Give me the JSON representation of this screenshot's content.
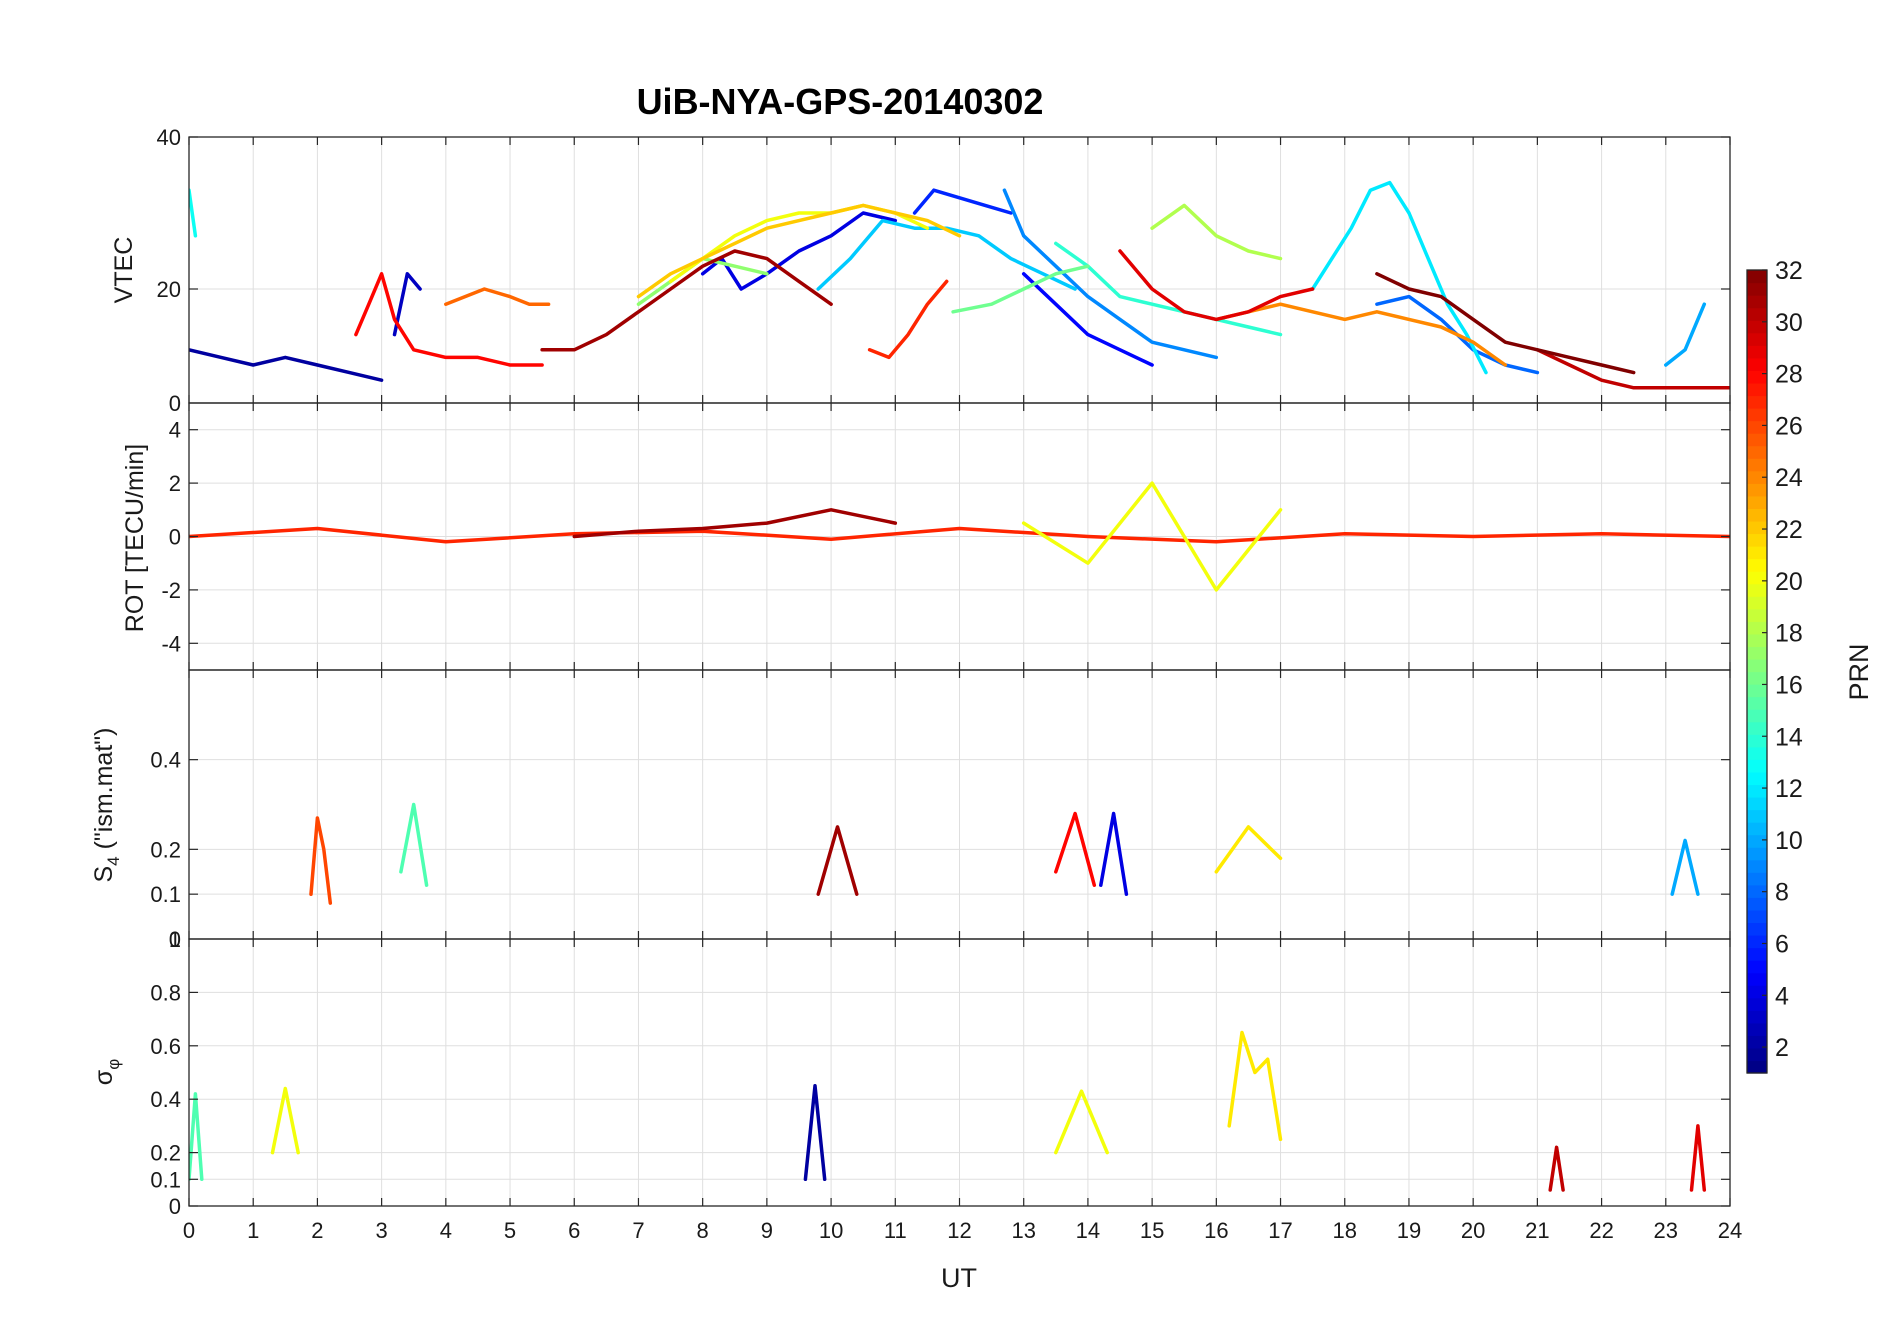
{
  "chart_data": {
    "type": "line",
    "title": "UiB-NYA-GPS-20140302",
    "xlabel": "UT",
    "xlim": [
      0,
      24
    ],
    "xticks": [
      "0",
      "1",
      "2",
      "3",
      "4",
      "5",
      "6",
      "7",
      "8",
      "9",
      "10",
      "11",
      "12",
      "13",
      "14",
      "15",
      "16",
      "17",
      "18",
      "19",
      "20",
      "21",
      "22",
      "23",
      "24"
    ],
    "grid": true,
    "panels": [
      {
        "id": "vtec",
        "ylabel": "VTEC",
        "ylim": [
          5,
          40
        ],
        "yticks": [
          {
            "v": 20,
            "label": "20"
          },
          {
            "v": 40,
            "label": "40"
          }
        ],
        "series": [
          {
            "prn": 2,
            "x": [
              0.0,
              0.5,
              1.0,
              1.5,
              2.0,
              2.5,
              3.0
            ],
            "y": [
              12,
              11,
              10,
              11,
              10,
              9,
              8
            ]
          },
          {
            "prn": 3,
            "x": [
              3.2,
              3.3,
              3.4,
              3.5,
              3.6
            ],
            "y": [
              14,
              18,
              22,
              21,
              20
            ]
          },
          {
            "prn": 4,
            "x": [
              8.0,
              8.3,
              8.6,
              9.0,
              9.5,
              10.0,
              10.5,
              11.0
            ],
            "y": [
              22,
              24,
              20,
              22,
              25,
              27,
              30,
              29
            ]
          },
          {
            "prn": 5,
            "x": [
              13.0,
              13.5,
              14.0,
              14.5,
              15.0
            ],
            "y": [
              22,
              18,
              14,
              12,
              10
            ]
          },
          {
            "prn": 6,
            "x": [
              11.3,
              11.6,
              12.0,
              12.4,
              12.8
            ],
            "y": [
              30,
              33,
              32,
              31,
              30
            ]
          },
          {
            "prn": 8,
            "x": [
              18.5,
              19.0,
              19.5,
              20.0,
              20.5,
              21.0
            ],
            "y": [
              18,
              19,
              16,
              12,
              10,
              9
            ]
          },
          {
            "prn": 9,
            "x": [
              12.7,
              13.0,
              13.5,
              14.0,
              14.5,
              15.0,
              15.5,
              16.0
            ],
            "y": [
              33,
              27,
              23,
              19,
              16,
              13,
              12,
              11
            ]
          },
          {
            "prn": 10,
            "x": [
              23.0,
              23.3,
              23.6
            ],
            "y": [
              10,
              12,
              18
            ]
          },
          {
            "prn": 11,
            "x": [
              9.8,
              10.3,
              10.8,
              11.3,
              11.8,
              12.3,
              12.8,
              13.3,
              13.8
            ],
            "y": [
              20,
              24,
              29,
              28,
              28,
              27,
              24,
              22,
              20
            ]
          },
          {
            "prn": 12,
            "x": [
              17.5,
              17.8,
              18.1,
              18.4,
              18.7,
              19.0,
              19.3,
              19.6,
              19.9,
              20.2
            ],
            "y": [
              20,
              24,
              28,
              33,
              34,
              30,
              24,
              18,
              14,
              9
            ]
          },
          {
            "prn": 13,
            "x": [
              0.0,
              0.05,
              0.1
            ],
            "y": [
              33,
              30,
              27
            ]
          },
          {
            "prn": 14,
            "x": [
              13.5,
              14.0,
              14.5,
              15.0,
              15.5,
              16.0,
              16.5,
              17.0
            ],
            "y": [
              26,
              23,
              19,
              18,
              17,
              16,
              15,
              14
            ]
          },
          {
            "prn": 16,
            "x": [
              11.9,
              12.5,
              13.0,
              13.5,
              14.0
            ],
            "y": [
              17,
              18,
              20,
              22,
              23
            ]
          },
          {
            "prn": 17,
            "x": [
              7.0,
              7.5,
              8.0,
              8.5,
              9.0
            ],
            "y": [
              18,
              21,
              24,
              23,
              22
            ]
          },
          {
            "prn": 18,
            "x": [
              15.0,
              15.5,
              16.0,
              16.5,
              17.0
            ],
            "y": [
              28,
              31,
              27,
              25,
              24
            ]
          },
          {
            "prn": 20,
            "x": [
              7.5,
              8.0,
              8.5,
              9.0,
              9.5,
              10.0,
              10.5,
              11.0,
              11.5
            ],
            "y": [
              21,
              24,
              27,
              29,
              30,
              30,
              31,
              30,
              28
            ]
          },
          {
            "prn": 22,
            "x": [
              7.0,
              7.5,
              8.0,
              8.5,
              9.0,
              9.5,
              10.0,
              10.5,
              11.0,
              11.5,
              12.0
            ],
            "y": [
              19,
              22,
              24,
              26,
              28,
              29,
              30,
              31,
              30,
              29,
              27
            ]
          },
          {
            "prn": 24,
            "x": [
              16.0,
              16.5,
              17.0,
              17.5,
              18.0,
              18.5,
              19.0,
              19.5,
              20.0,
              20.5
            ],
            "y": [
              16,
              17,
              18,
              17,
              16,
              17,
              16,
              15,
              13,
              10
            ]
          },
          {
            "prn": 25,
            "x": [
              4.0,
              4.3,
              4.6,
              5.0,
              5.3,
              5.6
            ],
            "y": [
              18,
              19,
              20,
              19,
              18,
              18
            ]
          },
          {
            "prn": 27,
            "x": [
              10.6,
              10.9,
              11.2,
              11.5,
              11.8
            ],
            "y": [
              12,
              11,
              14,
              18,
              21
            ]
          },
          {
            "prn": 28,
            "x": [
              2.6,
              2.8,
              3.0,
              3.2,
              3.5,
              4.0,
              4.5,
              5.0,
              5.5
            ],
            "y": [
              14,
              18,
              22,
              16,
              12,
              11,
              11,
              10,
              10
            ]
          },
          {
            "prn": 29,
            "x": [
              14.5,
              15.0,
              15.5,
              16.0,
              16.5,
              17.0,
              17.5
            ],
            "y": [
              25,
              20,
              17,
              16,
              17,
              19,
              20
            ]
          },
          {
            "prn": 30,
            "x": [
              21.0,
              21.5,
              22.0,
              22.5,
              23.0,
              23.5,
              24.0
            ],
            "y": [
              12,
              10,
              8,
              7,
              7,
              7,
              7
            ]
          },
          {
            "prn": 31,
            "x": [
              5.5,
              6.0,
              6.5,
              7.0,
              7.5,
              8.0,
              8.5,
              9.0,
              9.5,
              10.0
            ],
            "y": [
              12,
              12,
              14,
              17,
              20,
              23,
              25,
              24,
              21,
              18
            ]
          },
          {
            "prn": 32,
            "x": [
              18.5,
              19.0,
              19.5,
              20.0,
              20.5,
              21.0,
              21.5,
              22.0,
              22.5
            ],
            "y": [
              22,
              20,
              19,
              16,
              13,
              12,
              11,
              10,
              9
            ]
          }
        ]
      },
      {
        "id": "rot",
        "ylabel": "ROT [TECU/min]",
        "ylim": [
          -5,
          5
        ],
        "yticks": [
          {
            "v": -4,
            "label": "-4"
          },
          {
            "v": -2,
            "label": "-2"
          },
          {
            "v": 0,
            "label": "0"
          },
          {
            "v": 2,
            "label": "2"
          },
          {
            "v": 4,
            "label": "4"
          }
        ],
        "top_tick_label": "0",
        "series": [
          {
            "prn": 27,
            "x": [
              0.0,
              2.0,
              4.0,
              6.0,
              8.0,
              10.0,
              12.0,
              14.0,
              16.0,
              18.0,
              20.0,
              22.0,
              24.0
            ],
            "y": [
              0,
              0.3,
              -0.2,
              0.1,
              0.2,
              -0.1,
              0.3,
              0.0,
              -0.2,
              0.1,
              0.0,
              0.1,
              0.0
            ]
          },
          {
            "prn": 31,
            "x": [
              6.0,
              7.0,
              8.0,
              9.0,
              10.0,
              11.0
            ],
            "y": [
              0,
              0.2,
              0.3,
              0.5,
              1.0,
              0.5
            ]
          },
          {
            "prn": 20,
            "x": [
              13.0,
              14.0,
              15.0,
              16.0,
              17.0
            ],
            "y": [
              0.5,
              -1,
              2,
              -2,
              1
            ]
          }
        ]
      },
      {
        "id": "s4",
        "ylabel": "S4 (\"ism.mat\")",
        "ylim": [
          0,
          0.6
        ],
        "yticks": [
          {
            "v": 0.1,
            "label": "0.1"
          },
          {
            "v": 0.2,
            "label": "0.2"
          },
          {
            "v": 0.4,
            "label": "0.4"
          }
        ],
        "bottom_tick_label": "0",
        "series": [
          {
            "prn": 26,
            "x": [
              1.9,
              2.0,
              2.1,
              2.2
            ],
            "y": [
              0.1,
              0.27,
              0.2,
              0.08
            ]
          },
          {
            "prn": 15,
            "x": [
              3.3,
              3.5,
              3.7
            ],
            "y": [
              0.15,
              0.3,
              0.12
            ]
          },
          {
            "prn": 28,
            "x": [
              13.5,
              13.8,
              14.1
            ],
            "y": [
              0.15,
              0.28,
              0.12
            ]
          },
          {
            "prn": 4,
            "x": [
              14.2,
              14.4,
              14.6
            ],
            "y": [
              0.12,
              0.28,
              0.1
            ]
          },
          {
            "prn": 31,
            "x": [
              9.8,
              10.1,
              10.4
            ],
            "y": [
              0.1,
              0.25,
              0.1
            ]
          },
          {
            "prn": 21,
            "x": [
              16.0,
              16.5,
              17.0
            ],
            "y": [
              0.15,
              0.25,
              0.18
            ]
          },
          {
            "prn": 10,
            "x": [
              23.1,
              23.3,
              23.5
            ],
            "y": [
              0.1,
              0.22,
              0.1
            ]
          }
        ]
      },
      {
        "id": "sigma",
        "ylabel": "σφ",
        "ylim": [
          0,
          1
        ],
        "yticks": [
          {
            "v": 0,
            "label": "0"
          },
          {
            "v": 0.1,
            "label": "0.1"
          },
          {
            "v": 0.2,
            "label": "0.2"
          },
          {
            "v": 0.4,
            "label": "0.4"
          },
          {
            "v": 0.6,
            "label": "0.6"
          },
          {
            "v": 0.8,
            "label": "0.8"
          }
        ],
        "top_tick_label": "1",
        "series": [
          {
            "prn": 21,
            "x": [
              16.2,
              16.4,
              16.6,
              16.8,
              17.0
            ],
            "y": [
              0.3,
              0.65,
              0.5,
              0.55,
              0.25
            ]
          },
          {
            "prn": 20,
            "x": [
              1.3,
              1.5,
              1.7
            ],
            "y": [
              0.2,
              0.44,
              0.2
            ]
          },
          {
            "prn": 20,
            "x": [
              13.5,
              13.9,
              14.3
            ],
            "y": [
              0.2,
              0.43,
              0.2
            ]
          },
          {
            "prn": 2,
            "x": [
              9.6,
              9.75,
              9.9
            ],
            "y": [
              0.1,
              0.45,
              0.1
            ]
          },
          {
            "prn": 15,
            "x": [
              0.0,
              0.1,
              0.2
            ],
            "y": [
              0.1,
              0.42,
              0.1
            ]
          },
          {
            "prn": 29,
            "x": [
              23.4,
              23.5,
              23.6
            ],
            "y": [
              0.06,
              0.3,
              0.06
            ]
          },
          {
            "prn": 30,
            "x": [
              21.2,
              21.3,
              21.4
            ],
            "y": [
              0.06,
              0.22,
              0.06
            ]
          }
        ]
      }
    ],
    "colorbar": {
      "label": "PRN",
      "range": [
        1,
        32
      ],
      "ticks": [
        2,
        4,
        6,
        8,
        10,
        12,
        14,
        16,
        18,
        20,
        22,
        24,
        26,
        28,
        30,
        32
      ],
      "tick_labels": [
        "2",
        "4",
        "6",
        "8",
        "10",
        "12",
        "14",
        "16",
        "18",
        "20",
        "22",
        "24",
        "26",
        "28",
        "30",
        "32"
      ],
      "colormap": "jet"
    }
  }
}
